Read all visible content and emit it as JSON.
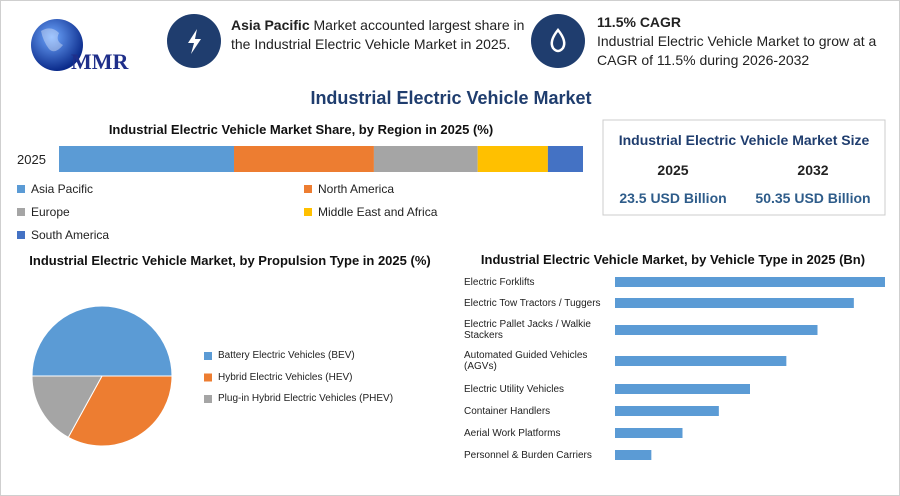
{
  "header": {
    "logo": "MMR",
    "highlight_1": {
      "bold": "Asia Pacific",
      "text": "Market accounted largest share in the Industrial Electric Vehicle Market in 2025."
    },
    "highlight_2": {
      "bold": "11.5% CAGR",
      "text": "Industrial Electric Vehicle Market to grow at a CAGR of 11.5% during 2026-2032"
    },
    "title": "Industrial Electric Vehicle Market"
  },
  "market_size": {
    "title": "Industrial Electric Vehicle Market Size",
    "columns": [
      "2025",
      "2032"
    ],
    "values": [
      "23.5 USD Billion",
      "50.35 USD Billion"
    ]
  },
  "chart_data": [
    {
      "type": "stacked-bar",
      "title": "Industrial Electric Vehicle Market Share, by Region in 2025 (%)",
      "categories": [
        "2025"
      ],
      "xlim": [
        0,
        100
      ],
      "series": [
        {
          "name": "Asia Pacific",
          "color": "#5b9bd5",
          "values": [
            33.4
          ]
        },
        {
          "name": "North America",
          "color": "#ed7d31",
          "values": [
            26.7
          ]
        },
        {
          "name": "Europe",
          "color": "#a5a5a5",
          "values": [
            19.8
          ]
        },
        {
          "name": "Middle East and Africa",
          "color": "#ffc000",
          "values": [
            13.4
          ]
        },
        {
          "name": "South America",
          "color": "#4472c4",
          "values": [
            6.7
          ]
        }
      ]
    },
    {
      "type": "pie",
      "title": "Industrial Electric Vehicle Market, by Propulsion Type in 2025 (%)",
      "categories": [
        "Battery Electric Vehicles (BEV)",
        "Hybrid Electric Vehicles (HEV)",
        "Plug-in Hybrid Electric Vehicles (PHEV)"
      ],
      "values": [
        50,
        33,
        17
      ],
      "colors": [
        "#5b9bd5",
        "#ed7d31",
        "#a5a5a5"
      ]
    },
    {
      "type": "hbar",
      "title": "Industrial Electric Vehicle Market, by Vehicle Type in 2025 (Bn)",
      "categories": [
        "Electric Forklifts",
        "Electric Tow Tractors / Tuggers",
        "Electric Pallet Jacks / Walkie Stackers",
        "Automated Guided Vehicles (AGVs)",
        "Electric Utility Vehicles",
        "Container Handlers",
        "Aerial Work Platforms",
        "Personnel & Burden Carriers"
      ],
      "values": [
        5.2,
        4.6,
        3.9,
        3.3,
        2.6,
        2.0,
        1.3,
        0.7
      ],
      "color": "#5b9bd5",
      "xlim": [
        0,
        5.2
      ]
    }
  ]
}
